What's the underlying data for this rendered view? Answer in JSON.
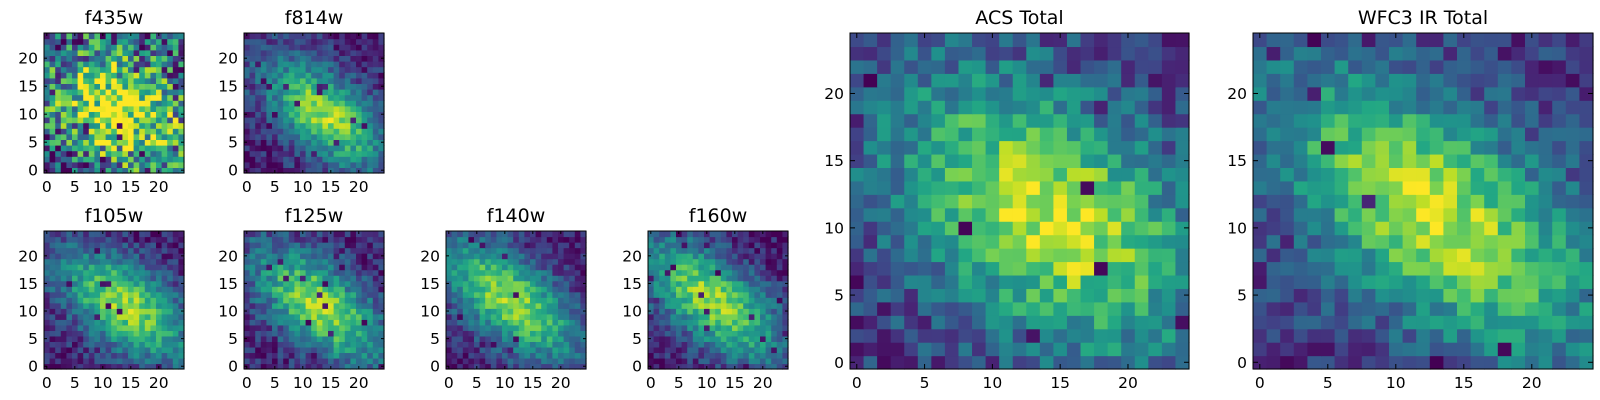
{
  "chart_data": [
    {
      "type": "heatmap",
      "title": "f435w",
      "x_ticks": [
        "0",
        "5",
        "10",
        "15",
        "20"
      ],
      "y_ticks": [
        "0",
        "5",
        "10",
        "15",
        "20"
      ],
      "xlim": [
        0,
        25
      ],
      "ylim": [
        0,
        25
      ],
      "grid": false,
      "colormap": "viridis",
      "noise": 0.85,
      "peak": [
        13,
        11
      ],
      "sigma": [
        8.5,
        6.2
      ],
      "angle": -35,
      "base": 0.55,
      "seed": 11
    },
    {
      "type": "heatmap",
      "title": "f814w",
      "x_ticks": [
        "0",
        "5",
        "10",
        "15",
        "20"
      ],
      "y_ticks": [
        "0",
        "5",
        "10",
        "15",
        "20"
      ],
      "xlim": [
        0,
        25
      ],
      "ylim": [
        0,
        25
      ],
      "grid": false,
      "colormap": "viridis",
      "noise": 0.3,
      "peak": [
        14,
        10
      ],
      "sigma": [
        9,
        4.5
      ],
      "angle": -40,
      "base": 0.25,
      "seed": 23
    },
    {
      "type": "heatmap",
      "title": "f105w",
      "x_ticks": [
        "0",
        "5",
        "10",
        "15",
        "20"
      ],
      "y_ticks": [
        "0",
        "5",
        "10",
        "15",
        "20"
      ],
      "xlim": [
        0,
        25
      ],
      "ylim": [
        0,
        25
      ],
      "grid": false,
      "colormap": "viridis",
      "noise": 0.3,
      "peak": [
        14,
        11
      ],
      "sigma": [
        10,
        5
      ],
      "angle": -38,
      "base": 0.2,
      "seed": 37
    },
    {
      "type": "heatmap",
      "title": "f125w",
      "x_ticks": [
        "0",
        "5",
        "10",
        "15",
        "20"
      ],
      "y_ticks": [
        "0",
        "5",
        "10",
        "15",
        "20"
      ],
      "xlim": [
        0,
        25
      ],
      "ylim": [
        0,
        25
      ],
      "grid": false,
      "colormap": "viridis",
      "noise": 0.32,
      "peak": [
        13,
        11
      ],
      "sigma": [
        10,
        4.8
      ],
      "angle": -40,
      "base": 0.22,
      "seed": 41
    },
    {
      "type": "heatmap",
      "title": "f140w",
      "x_ticks": [
        "0",
        "5",
        "10",
        "15",
        "20"
      ],
      "y_ticks": [
        "0",
        "5",
        "10",
        "15",
        "20"
      ],
      "xlim": [
        0,
        25
      ],
      "ylim": [
        0,
        25
      ],
      "grid": false,
      "colormap": "viridis",
      "noise": 0.28,
      "peak": [
        11,
        12
      ],
      "sigma": [
        11,
        5
      ],
      "angle": -40,
      "base": 0.2,
      "seed": 53
    },
    {
      "type": "heatmap",
      "title": "f160w",
      "x_ticks": [
        "0",
        "5",
        "10",
        "15",
        "20"
      ],
      "y_ticks": [
        "0",
        "5",
        "10",
        "15",
        "20"
      ],
      "xlim": [
        0,
        25
      ],
      "ylim": [
        0,
        25
      ],
      "grid": false,
      "colormap": "viridis",
      "noise": 0.28,
      "peak": [
        11,
        12
      ],
      "sigma": [
        11,
        5
      ],
      "angle": -40,
      "base": 0.2,
      "seed": 67
    },
    {
      "type": "heatmap",
      "title": "ACS Total",
      "x_ticks": [
        "0",
        "5",
        "10",
        "15",
        "20"
      ],
      "y_ticks": [
        "0",
        "5",
        "10",
        "15",
        "20"
      ],
      "xlim": [
        0,
        25
      ],
      "ylim": [
        0,
        25
      ],
      "grid": false,
      "colormap": "viridis",
      "noise": 0.35,
      "peak": [
        14,
        11
      ],
      "sigma": [
        9,
        5.5
      ],
      "angle": -38,
      "base": 0.4,
      "seed": 79
    },
    {
      "type": "heatmap",
      "title": "WFC3 IR Total",
      "x_ticks": [
        "0",
        "5",
        "10",
        "15",
        "20"
      ],
      "y_ticks": [
        "0",
        "5",
        "10",
        "15",
        "20"
      ],
      "xlim": [
        0,
        25
      ],
      "ylim": [
        0,
        25
      ],
      "grid": false,
      "colormap": "viridis",
      "noise": 0.3,
      "peak": [
        13,
        11
      ],
      "sigma": [
        10,
        5
      ],
      "angle": -38,
      "base": 0.35,
      "seed": 97
    }
  ]
}
